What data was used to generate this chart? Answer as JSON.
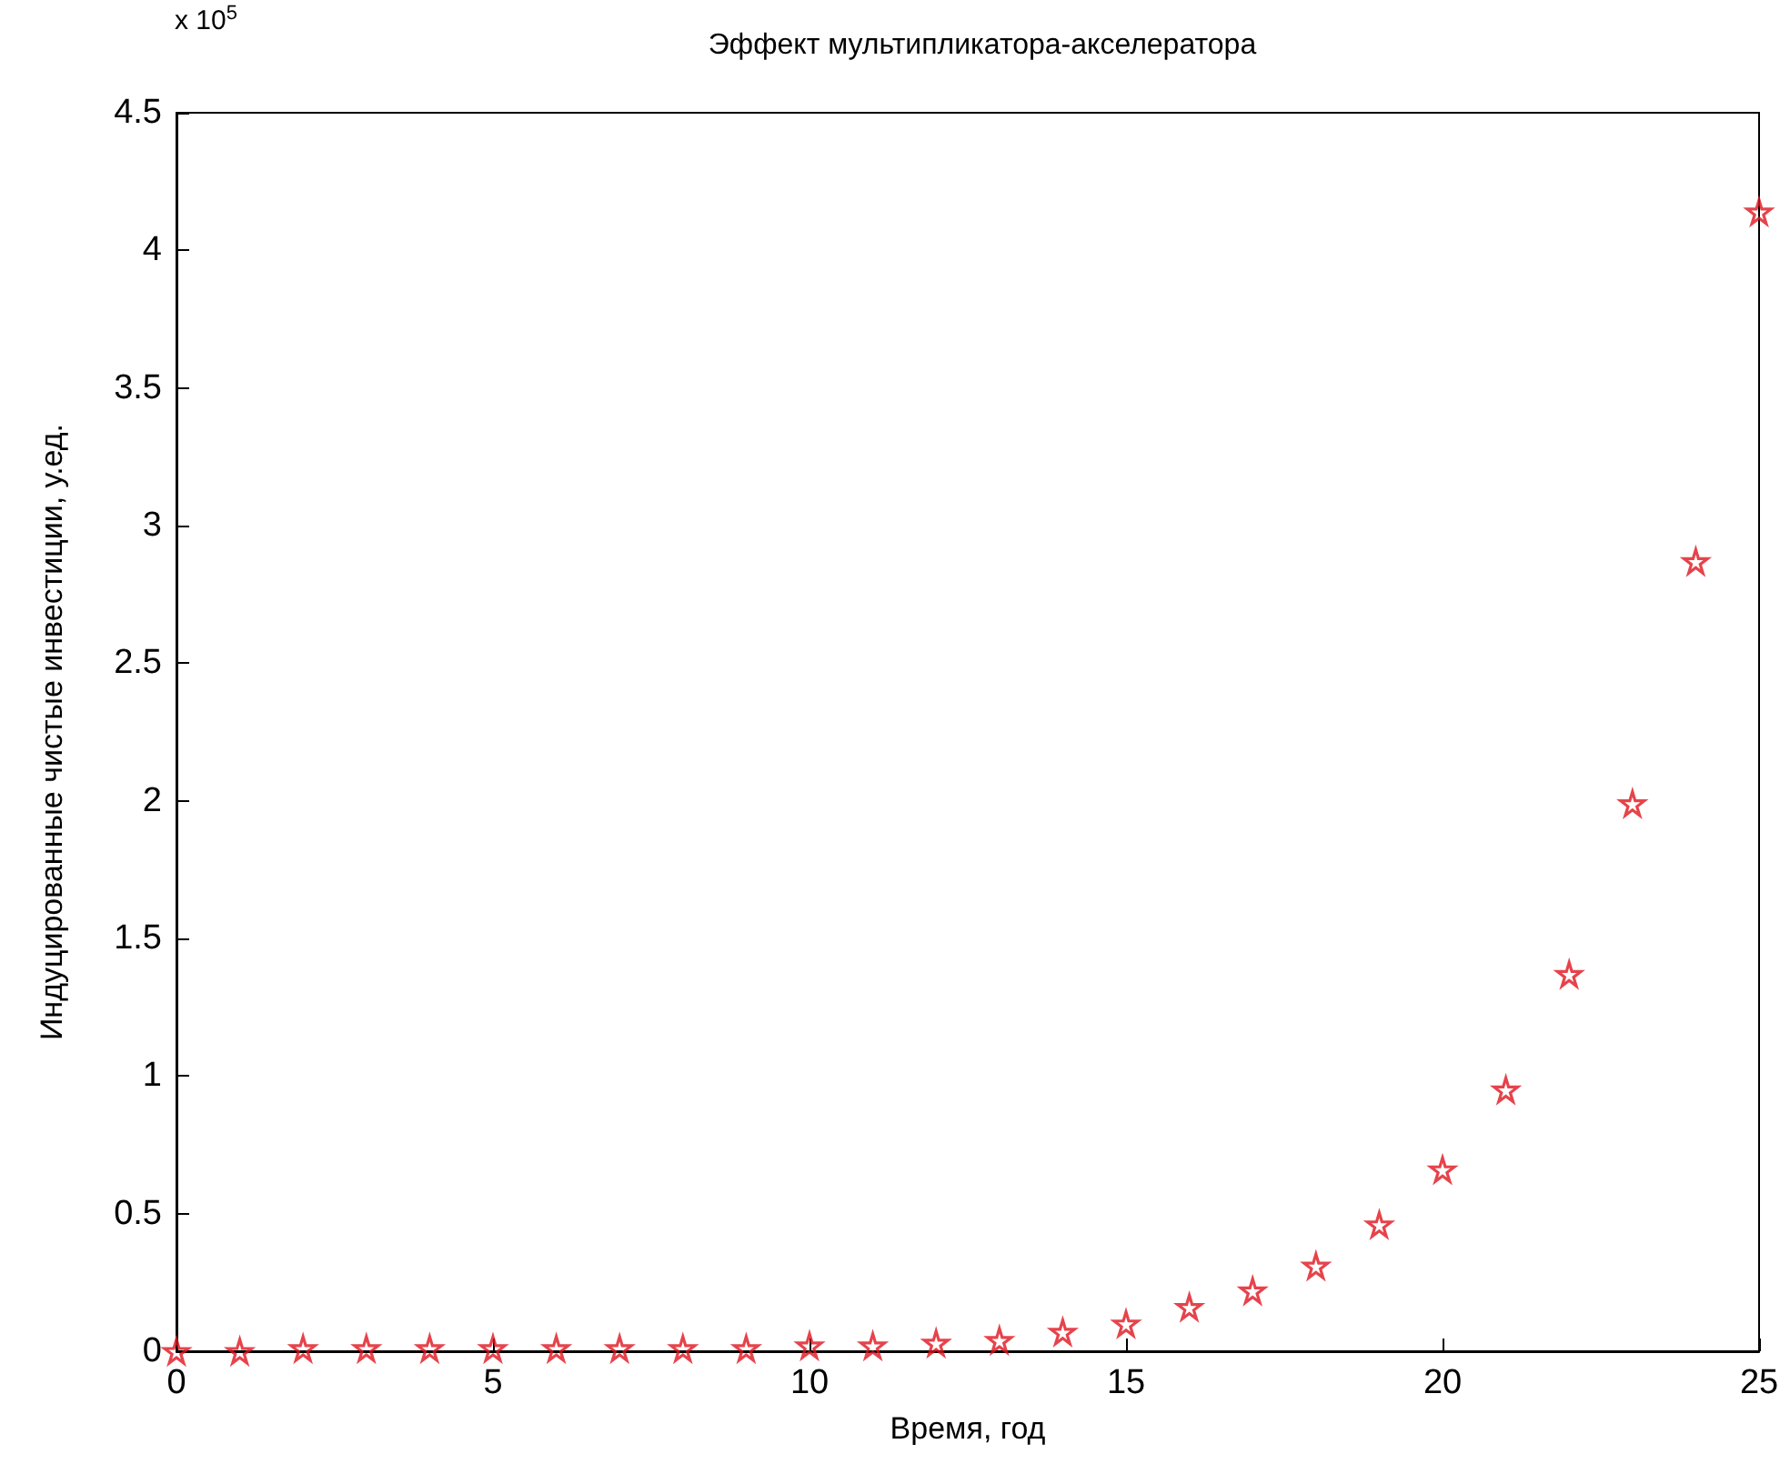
{
  "chart_data": {
    "type": "scatter",
    "title": "Эффект мультипликатора-акселератора",
    "xlabel": "Время, год",
    "ylabel": "Индуцированные чистые инвестиции, у.ед.",
    "annotations": [
      "x 10$^{5}$"
    ],
    "x": [
      0,
      1,
      2,
      3,
      4,
      5,
      6,
      7,
      8,
      9,
      10,
      11,
      12,
      13,
      14,
      15,
      16,
      17,
      18,
      19,
      20,
      21,
      22,
      23,
      24,
      25
    ],
    "series": [
      {
        "color": "#e0141e",
        "values": [
          0,
          0,
          0.01,
          0.01,
          0.01,
          0.01,
          0.01,
          0.01,
          0.01,
          0.01,
          0.02,
          0.02,
          0.03,
          0.04,
          0.07,
          0.1,
          0.16,
          0.22,
          0.31,
          0.46,
          0.66,
          0.95,
          1.37,
          1.99,
          2.87,
          4.14
        ]
      }
    ],
    "xlim": [
      0,
      25
    ],
    "xticks": [
      0,
      5,
      10,
      15,
      20,
      25
    ],
    "ylim": [
      0,
      4.5
    ],
    "yticks": [
      0,
      0.5,
      1,
      1.5,
      2,
      2.5,
      3,
      3.5,
      4,
      4.5
    ],
    "marker": "star",
    "grid": false
  }
}
